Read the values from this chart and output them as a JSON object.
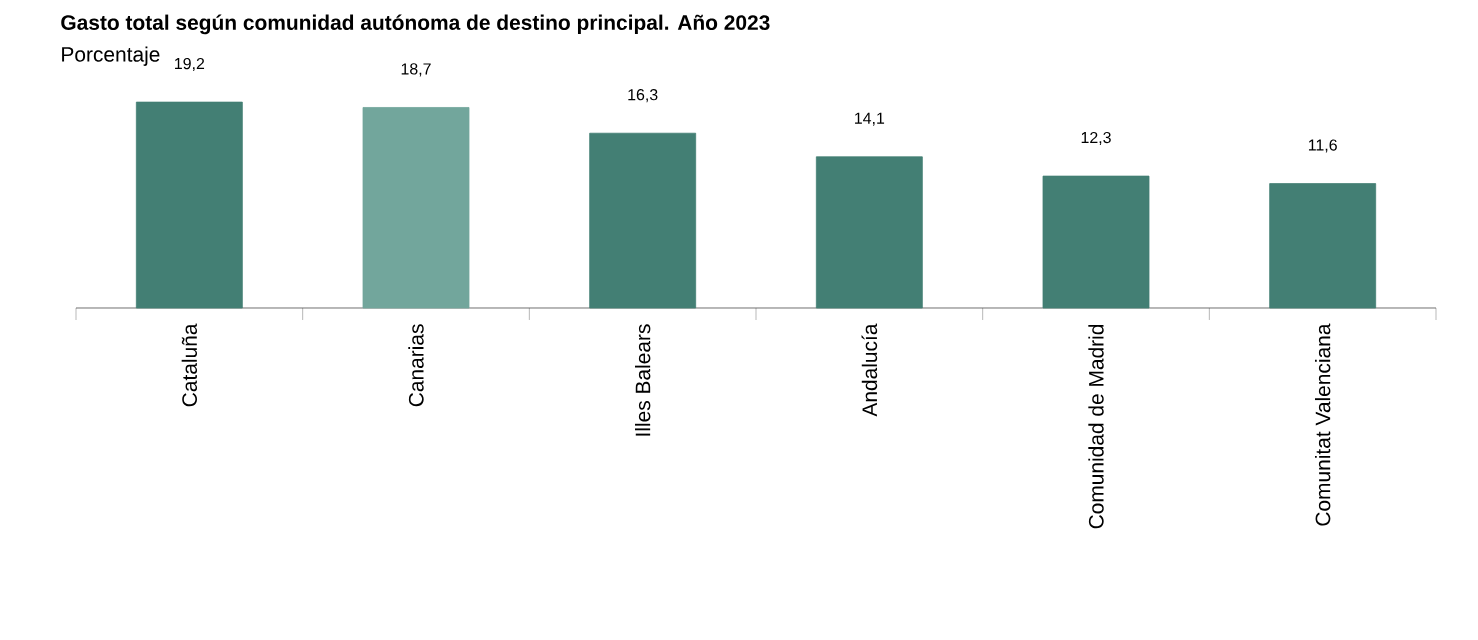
{
  "chart_data": {
    "type": "bar",
    "title": "Gasto total según comunidad autónoma de destino principal. Año 2023",
    "subtitle": "Porcentaje",
    "categories": [
      "Cataluña",
      "Canarias",
      "Illes Balears",
      "Andalucía",
      "Comunidad de Madrid",
      "Comunitat Valenciana"
    ],
    "values": [
      19.2,
      18.7,
      16.3,
      14.1,
      12.3,
      11.6
    ],
    "value_labels": [
      "19,2",
      "18,7",
      "16,3",
      "14,1",
      "12,3",
      "11,6"
    ],
    "colors": [
      "#437f74",
      "#72a69c",
      "#437f74",
      "#437f74",
      "#437f74",
      "#437f74"
    ],
    "tick_labels": "x"
  }
}
